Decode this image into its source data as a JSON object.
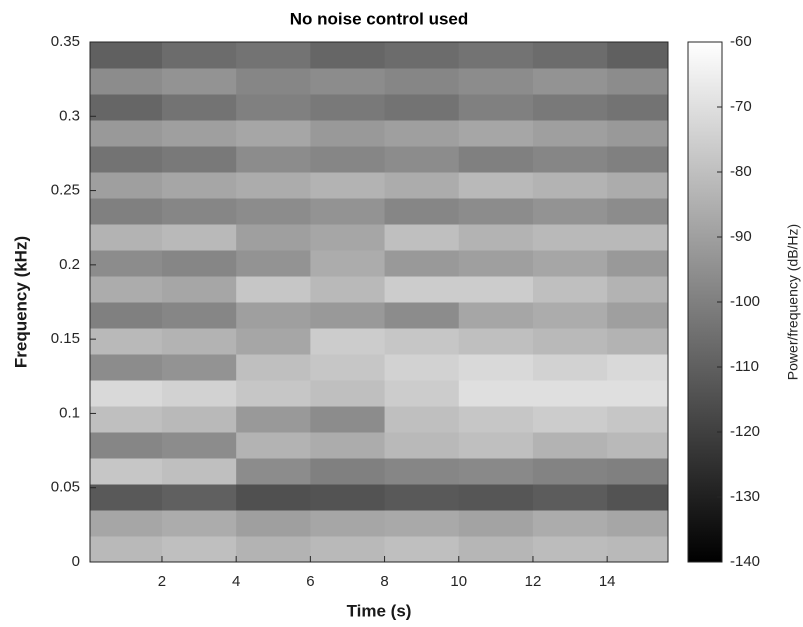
{
  "chart_data": {
    "type": "heatmap",
    "title": "No noise control used",
    "xlabel": "Time (s)",
    "ylabel": "Frequency (kHz)",
    "colorbar_label": "Power/frequency (dB/Hz)",
    "colormap": "gray",
    "xlim": [
      0.06,
      15.64
    ],
    "ylim": [
      0,
      0.35
    ],
    "clim": [
      -140,
      -60
    ],
    "xticks": [
      2,
      4,
      6,
      8,
      10,
      12,
      14
    ],
    "yticks": [
      0,
      0.05,
      0.1,
      0.15,
      0.2,
      0.25,
      0.3,
      0.35
    ],
    "cticks": [
      -140,
      -130,
      -120,
      -110,
      -100,
      -90,
      -80,
      -70,
      -60
    ],
    "x_edges": [
      0.06,
      2,
      4,
      6,
      8,
      10,
      12,
      14,
      15.64
    ],
    "y_edges": [
      0,
      0.0175,
      0.035,
      0.0525,
      0.07,
      0.0875,
      0.105,
      0.1225,
      0.14,
      0.1575,
      0.175,
      0.1925,
      0.21,
      0.2275,
      0.245,
      0.2625,
      0.28,
      0.2975,
      0.315,
      0.3325,
      0.35
    ],
    "z": [
      [
        -82,
        -80,
        -84,
        -82,
        -80,
        -83,
        -81,
        -82
      ],
      [
        -88,
        -86,
        -90,
        -88,
        -87,
        -89,
        -86,
        -88
      ],
      [
        -112,
        -110,
        -115,
        -114,
        -112,
        -113,
        -111,
        -114
      ],
      [
        -78,
        -80,
        -96,
        -100,
        -98,
        -97,
        -99,
        -100
      ],
      [
        -98,
        -96,
        -84,
        -86,
        -82,
        -80,
        -84,
        -82
      ],
      [
        -80,
        -82,
        -92,
        -96,
        -80,
        -78,
        -76,
        -78
      ],
      [
        -72,
        -74,
        -78,
        -80,
        -76,
        -70,
        -70,
        -70
      ],
      [
        -96,
        -94,
        -80,
        -78,
        -74,
        -72,
        -74,
        -72
      ],
      [
        -82,
        -84,
        -88,
        -76,
        -78,
        -80,
        -82,
        -84
      ],
      [
        -100,
        -98,
        -90,
        -92,
        -96,
        -88,
        -86,
        -90
      ],
      [
        -86,
        -88,
        -78,
        -82,
        -76,
        -76,
        -80,
        -84
      ],
      [
        -96,
        -98,
        -94,
        -86,
        -92,
        -90,
        -88,
        -92
      ],
      [
        -84,
        -82,
        -90,
        -88,
        -80,
        -84,
        -82,
        -82
      ],
      [
        -100,
        -98,
        -96,
        -94,
        -98,
        -96,
        -94,
        -96
      ],
      [
        -90,
        -88,
        -86,
        -84,
        -86,
        -82,
        -84,
        -86
      ],
      [
        -104,
        -102,
        -96,
        -98,
        -96,
        -100,
        -98,
        -100
      ],
      [
        -92,
        -90,
        -88,
        -92,
        -90,
        -88,
        -90,
        -92
      ],
      [
        -108,
        -104,
        -100,
        -102,
        -104,
        -100,
        -102,
        -104
      ],
      [
        -96,
        -94,
        -98,
        -96,
        -98,
        -96,
        -94,
        -96
      ],
      [
        -110,
        -106,
        -104,
        -108,
        -106,
        -104,
        -106,
        -110
      ]
    ]
  }
}
